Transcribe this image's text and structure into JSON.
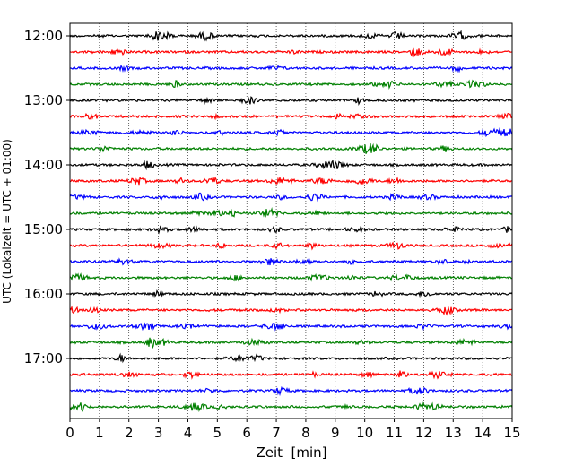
{
  "chart_data": {
    "type": "line",
    "title": "",
    "xlabel": "Zeit  [min]",
    "ylabel": "UTC (Lokalzeit = UTC + 01:00)",
    "xlim": [
      0,
      15
    ],
    "x_ticks": [
      "0",
      "1",
      "2",
      "3",
      "4",
      "5",
      "6",
      "7",
      "8",
      "9",
      "10",
      "11",
      "12",
      "13",
      "14",
      "15"
    ],
    "hour_labels": [
      "12:00",
      "13:00",
      "14:00",
      "15:00",
      "16:00",
      "17:00"
    ],
    "grid": "vertical dotted lines at each minute",
    "trace_colors": [
      "#000000",
      "#ff0000",
      "#0000ff",
      "#008000"
    ],
    "traces_per_hour": 4,
    "trace_minutes_per_line": 15,
    "series": [
      {
        "time": "12:00",
        "color": "#000000"
      },
      {
        "time": "12:15",
        "color": "#ff0000"
      },
      {
        "time": "12:30",
        "color": "#0000ff"
      },
      {
        "time": "12:45",
        "color": "#008000"
      },
      {
        "time": "13:00",
        "color": "#000000"
      },
      {
        "time": "13:15",
        "color": "#ff0000"
      },
      {
        "time": "13:30",
        "color": "#0000ff"
      },
      {
        "time": "13:45",
        "color": "#008000"
      },
      {
        "time": "14:00",
        "color": "#000000"
      },
      {
        "time": "14:15",
        "color": "#ff0000"
      },
      {
        "time": "14:30",
        "color": "#0000ff"
      },
      {
        "time": "14:45",
        "color": "#008000"
      },
      {
        "time": "15:00",
        "color": "#000000"
      },
      {
        "time": "15:15",
        "color": "#ff0000"
      },
      {
        "time": "15:30",
        "color": "#0000ff"
      },
      {
        "time": "15:45",
        "color": "#008000"
      },
      {
        "time": "16:00",
        "color": "#000000"
      },
      {
        "time": "16:15",
        "color": "#ff0000"
      },
      {
        "time": "16:30",
        "color": "#0000ff"
      },
      {
        "time": "16:45",
        "color": "#008000"
      },
      {
        "time": "17:00",
        "color": "#000000"
      },
      {
        "time": "17:15",
        "color": "#ff0000"
      },
      {
        "time": "17:30",
        "color": "#0000ff"
      },
      {
        "time": "17:45",
        "color": "#008000"
      }
    ]
  }
}
